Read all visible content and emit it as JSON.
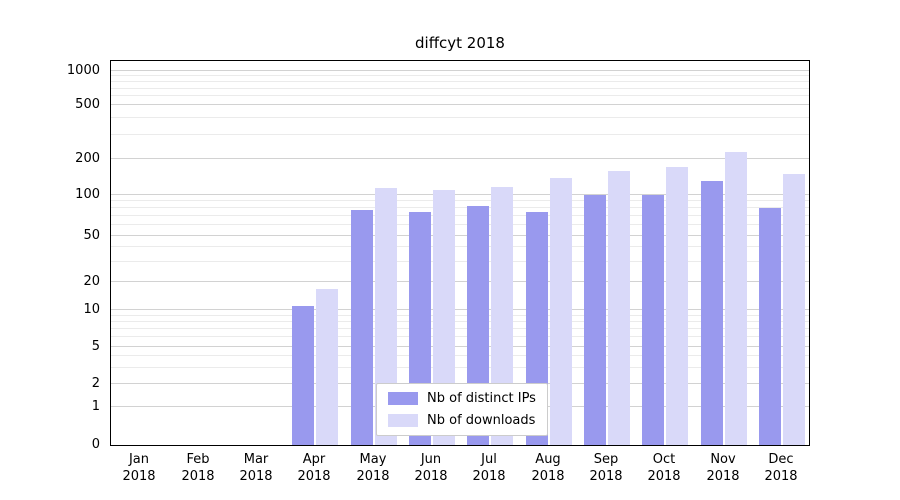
{
  "title": "diffcyt 2018",
  "chart_data": {
    "type": "bar",
    "title": "diffcyt 2018",
    "months": [
      "Jan",
      "Feb",
      "Mar",
      "Apr",
      "May",
      "Jun",
      "Jul",
      "Aug",
      "Sep",
      "Oct",
      "Nov",
      "Dec"
    ],
    "year_label": "2018",
    "categories": [
      "Jan 2018",
      "Feb 2018",
      "Mar 2018",
      "Apr 2018",
      "May 2018",
      "Jun 2018",
      "Jul 2018",
      "Aug 2018",
      "Sep 2018",
      "Oct 2018",
      "Nov 2018",
      "Dec 2018"
    ],
    "series": [
      {
        "name": "Nb of distinct IPs",
        "color": "#9999ee",
        "values": [
          0,
          0,
          0,
          11,
          78,
          75,
          83,
          75,
          100,
          100,
          130,
          80
        ]
      },
      {
        "name": "Nb of downloads",
        "color": "#d9d9f9",
        "values": [
          0,
          0,
          0,
          17,
          115,
          110,
          116,
          138,
          160,
          170,
          225,
          150
        ]
      }
    ],
    "y_ticks": [
      0,
      1,
      2,
      5,
      10,
      20,
      50,
      100,
      200,
      500,
      1000
    ],
    "yscale": "log-like",
    "ylim": [
      0,
      1000
    ],
    "grid": true,
    "legend_position": "lower center"
  }
}
